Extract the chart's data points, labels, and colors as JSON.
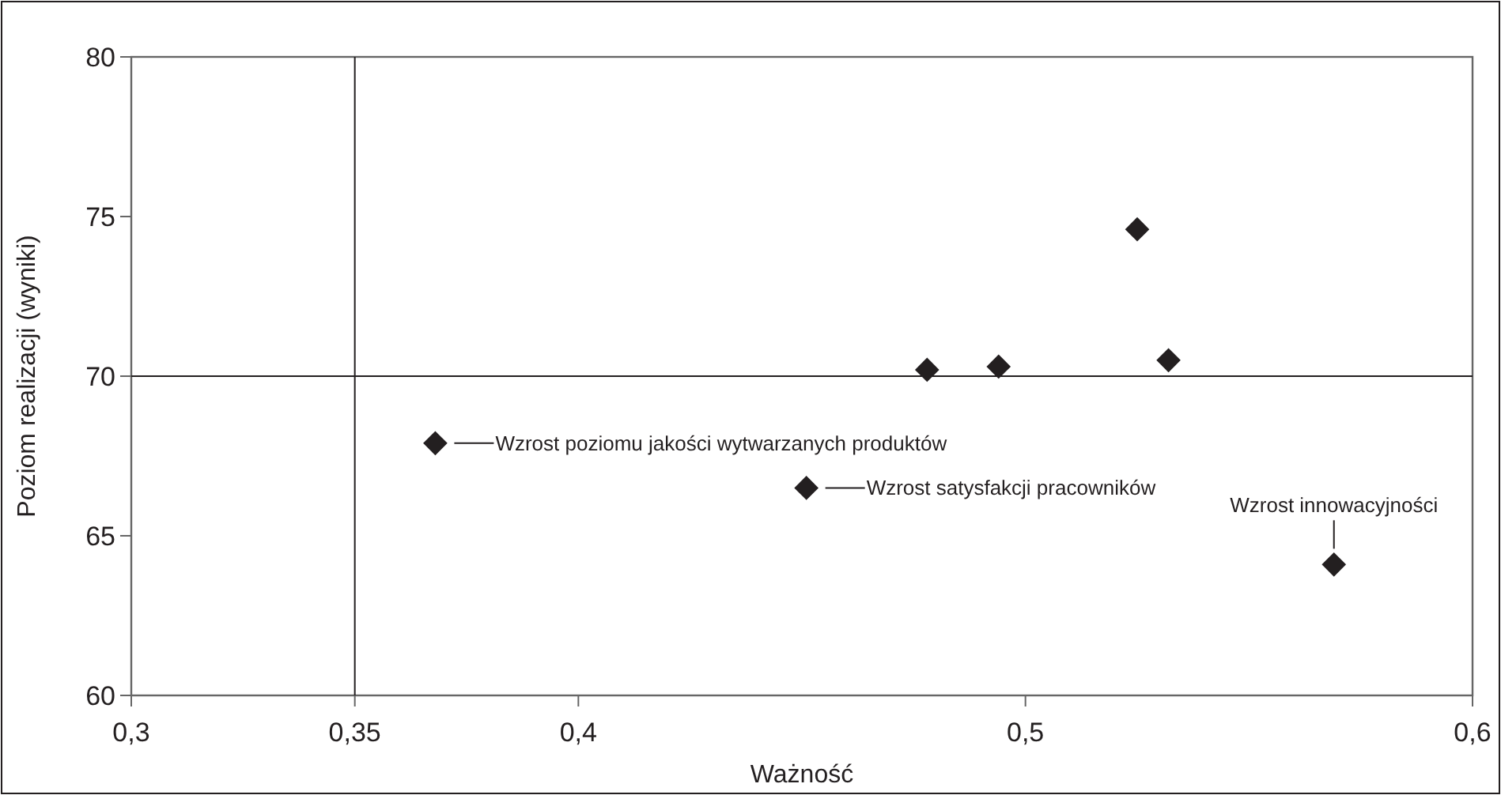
{
  "chart_data": {
    "type": "scatter",
    "xlabel": "Ważność",
    "ylabel": "Poziom realizacji (wyniki)",
    "x": [
      0.368,
      0.451,
      0.478,
      0.494,
      0.525,
      0.532,
      0.569
    ],
    "series": [
      {
        "color": "#231f20",
        "values": [
          67.9,
          66.5,
          70.2,
          70.3,
          74.6,
          70.5,
          64.1
        ]
      }
    ],
    "xlim": [
      0.3,
      0.6
    ],
    "ylim": [
      60,
      80
    ],
    "xticks": [
      {
        "value": 0.3,
        "label": "0,3"
      },
      {
        "value": 0.35,
        "label": "0,35"
      },
      {
        "value": 0.4,
        "label": "0,4"
      },
      {
        "value": 0.5,
        "label": "0,5"
      },
      {
        "value": 0.6,
        "label": "0,6"
      }
    ],
    "yticks": [
      60,
      65,
      70,
      75,
      80
    ],
    "ref_lines": [
      {
        "axis": "x",
        "value": 0.35,
        "color": "#231f20"
      },
      {
        "axis": "y",
        "value": 70,
        "color": "#231f20"
      }
    ],
    "annotations": [
      {
        "text": "Wzrost poziomu jakości wytwarzanych produktów",
        "x": 0.368,
        "y": 67.9
      },
      {
        "text": "Wzrost satysfakcji pracowników",
        "x": 0.451,
        "y": 66.5
      },
      {
        "text": "Wzrost innowacyjności",
        "x": 0.569,
        "y": 64.1
      }
    ],
    "marker": "diamond",
    "grid": false
  }
}
